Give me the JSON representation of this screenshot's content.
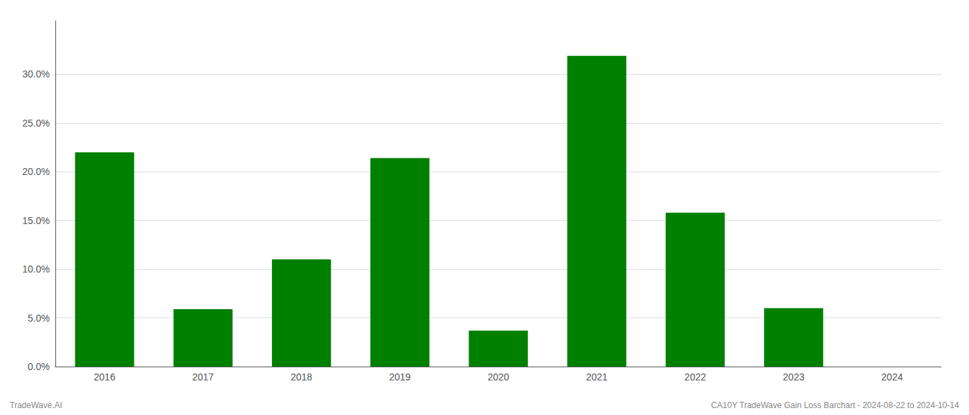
{
  "chart_data": {
    "type": "bar",
    "categories": [
      "2016",
      "2017",
      "2018",
      "2019",
      "2020",
      "2021",
      "2022",
      "2023",
      "2024"
    ],
    "values": [
      0.22,
      0.059,
      0.11,
      0.214,
      0.037,
      0.319,
      0.158,
      0.06,
      0.0
    ],
    "color": "#008000",
    "ylim": [
      0,
      0.355
    ],
    "yticks": [
      {
        "value": 0.0,
        "label": "0.0%"
      },
      {
        "value": 0.05,
        "label": "5.0%"
      },
      {
        "value": 0.1,
        "label": "10.0%"
      },
      {
        "value": 0.15,
        "label": "15.0%"
      },
      {
        "value": 0.2,
        "label": "20.0%"
      },
      {
        "value": 0.25,
        "label": "25.0%"
      },
      {
        "value": 0.3,
        "label": "30.0%"
      }
    ],
    "grid": true,
    "annotations": [
      "TradeWave.AI",
      "CA10Y TradeWave Gain Loss Barchart - 2024-08-22 to 2024-10-14"
    ]
  }
}
